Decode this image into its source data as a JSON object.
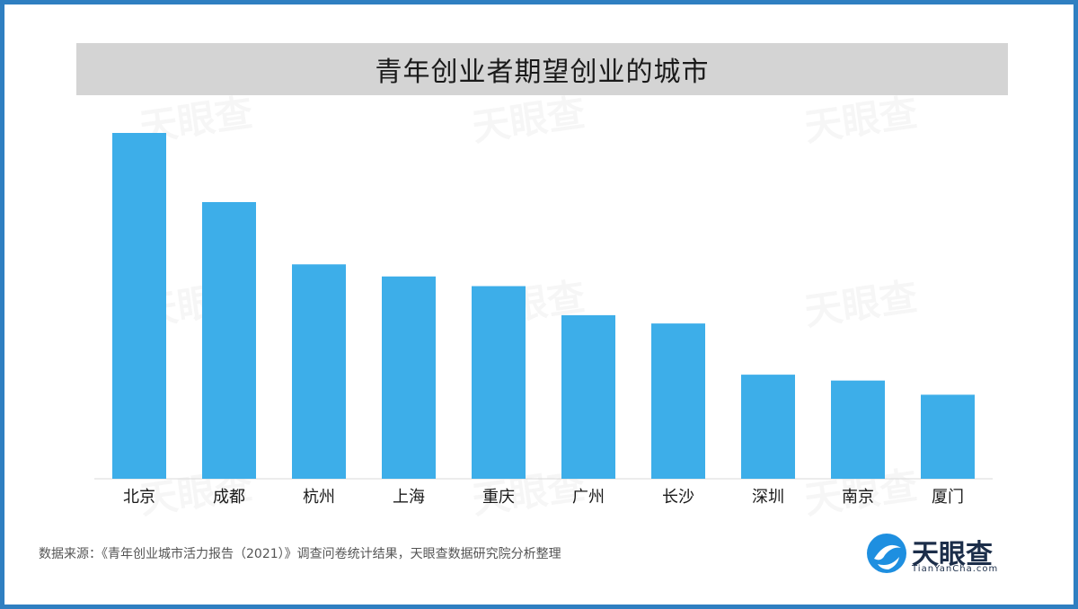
{
  "title": "青年创业者期望创业的城市",
  "source_note": "数据来源：《青年创业城市活力报告（2021）》调查问卷统计结果，天眼查数据研究院分析整理",
  "logo": {
    "name": "天眼查",
    "url_text": "TianYanCha.com",
    "icon": "tianyancha-logo-icon"
  },
  "colors": {
    "bar": "#3daee9",
    "frame": "#2f7fc1",
    "title_band": "#d4d4d4"
  },
  "chart_data": {
    "type": "bar",
    "title": "青年创业者期望创业的城市",
    "xlabel": "",
    "ylabel": "",
    "grid": false,
    "legend": "none",
    "categories": [
      "北京",
      "成都",
      "杭州",
      "上海",
      "重庆",
      "广州",
      "长沙",
      "深圳",
      "南京",
      "厦门"
    ],
    "values": [
      100,
      80,
      62,
      58.5,
      55.7,
      47.3,
      44.9,
      30.1,
      28.4,
      24.3
    ],
    "ylim": [
      0,
      100
    ]
  }
}
